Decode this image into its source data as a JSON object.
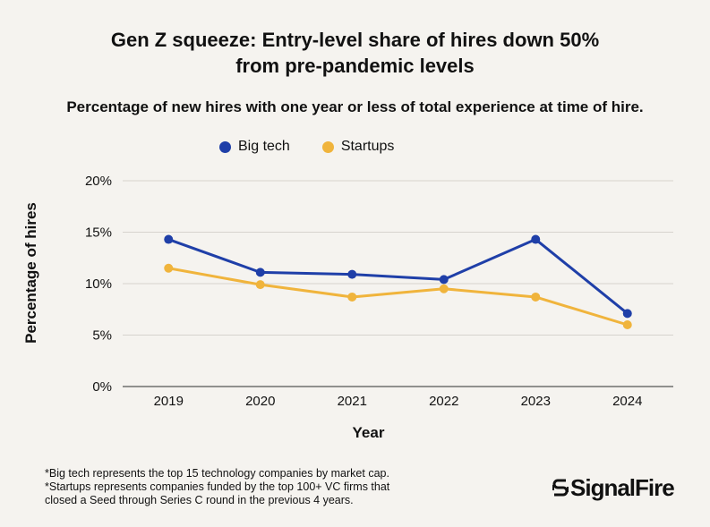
{
  "title_line1": "Gen Z squeeze: Entry-level share of hires down 50%",
  "title_line2": "from pre-pandemic levels",
  "subtitle": "Percentage of new hires with one year or less of total experience at time of hire.",
  "footnotes": [
    "*Big tech represents the top 15 technology companies by market cap.",
    "*Startups represents companies funded by the top 100+ VC firms that",
    "closed a Seed through Series C round in the previous 4 years."
  ],
  "logo": {
    "text": "SignalFire",
    "icon": "signalfire-logo-icon"
  },
  "chart_data": {
    "type": "line",
    "x": [
      "2019",
      "2020",
      "2021",
      "2022",
      "2023",
      "2024"
    ],
    "xlabel": "Year",
    "ylabel": "Percentage of hires",
    "ylim": [
      0,
      20
    ],
    "yticks": [
      0,
      5,
      10,
      15,
      20
    ],
    "ytick_labels": [
      "0%",
      "5%",
      "10%",
      "15%",
      "20%"
    ],
    "grid": "horizontal",
    "legend_position": "top",
    "series": [
      {
        "name": "Big tech",
        "color": "#1f3fa8",
        "values": [
          14.3,
          11.1,
          10.9,
          10.4,
          14.3,
          7.1
        ]
      },
      {
        "name": "Startups",
        "color": "#f0b43c",
        "values": [
          11.5,
          9.9,
          8.7,
          9.5,
          8.7,
          6.0
        ]
      }
    ]
  }
}
